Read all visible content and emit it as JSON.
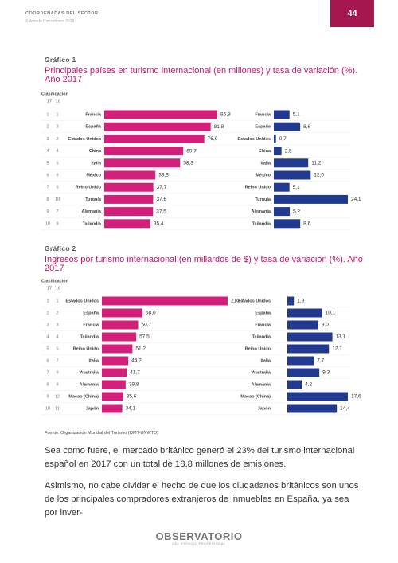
{
  "header": {
    "section": "COORDENADAS DEL SECTOR",
    "copyright": "© Amadó Consultores 2019",
    "page": "44"
  },
  "chart_data": [
    {
      "type": "bar",
      "label": "Gráfico 1",
      "title": "Principales países en turismo internacional (en millones) y tasa de variación (%). Año 2017",
      "rank_title": "Clasificación",
      "rank_headers": [
        "'17",
        "'16"
      ],
      "ranks": [
        [
          1,
          1
        ],
        [
          2,
          3
        ],
        [
          3,
          2
        ],
        [
          4,
          4
        ],
        [
          5,
          5
        ],
        [
          6,
          8
        ],
        [
          7,
          6
        ],
        [
          8,
          10
        ],
        [
          9,
          7
        ],
        [
          10,
          9
        ]
      ],
      "categories": [
        "Francia",
        "España",
        "Estados Unidos",
        "China",
        "Italia",
        "México",
        "Reino Unido",
        "Turquía",
        "Alemania",
        "Tailandia"
      ],
      "series": [
        {
          "color": "#d21f7a",
          "values": [
            86.9,
            81.8,
            76.9,
            60.7,
            58.3,
            39.3,
            37.7,
            37.6,
            37.5,
            35.4
          ],
          "value_labels": [
            "86,9",
            "81,8",
            "76,9",
            "60,7",
            "58,3",
            "39,3",
            "37,7",
            "37,6",
            "37,5",
            "35,4"
          ]
        },
        {
          "color": "#213a8f",
          "values": [
            5.1,
            8.6,
            0.7,
            2.5,
            11.2,
            12.0,
            5.1,
            24.1,
            5.2,
            8.6
          ],
          "value_labels": [
            "5,1",
            "8,6",
            "0,7",
            "2,5",
            "11,2",
            "12,0",
            "5,1",
            "24,1",
            "5,2",
            "8,6"
          ]
        }
      ]
    },
    {
      "type": "bar",
      "label": "Gráfico 2",
      "title": "Ingresos por turismo internacional (en millardos de $) y tasa de variación (%). Año 2017",
      "rank_title": "Clasificación",
      "rank_headers": [
        "'17",
        "'16"
      ],
      "ranks": [
        [
          1,
          1
        ],
        [
          2,
          2
        ],
        [
          3,
          3
        ],
        [
          4,
          4
        ],
        [
          5,
          5
        ],
        [
          6,
          7
        ],
        [
          7,
          9
        ],
        [
          8,
          8
        ],
        [
          9,
          12
        ],
        [
          10,
          11
        ]
      ],
      "categories": [
        "Estados Unidos",
        "España",
        "Francia",
        "Tailandia",
        "Reino Unido",
        "Italia",
        "Australia",
        "Alemania",
        "Macao (China)",
        "Japón"
      ],
      "series": [
        {
          "color": "#d21f7a",
          "values": [
            210.7,
            68.0,
            60.7,
            57.5,
            51.2,
            44.2,
            41.7,
            39.8,
            35.6,
            34.1
          ],
          "value_labels": [
            "210,7",
            "68,0",
            "60,7",
            "57,5",
            "51,2",
            "44,2",
            "41,7",
            "39,8",
            "35,6",
            "34,1"
          ]
        },
        {
          "color": "#213a8f",
          "values": [
            1.9,
            10.1,
            9.0,
            13.1,
            12.1,
            7.7,
            9.3,
            4.2,
            17.6,
            14.4
          ],
          "value_labels": [
            "1,9",
            "10,1",
            "9,0",
            "13,1",
            "12,1",
            "7,7",
            "9,3",
            "4,2",
            "17,6",
            "14,4"
          ]
        }
      ]
    }
  ],
  "source": "Fuente: Organización Mundial del Turismo (OMT-UNWTO)",
  "paragraphs": [
    "Sea como fuere, el mercado británico generó el 23% del turismo internacional español en 2017 con un total de 18,8 millones de emisiones.",
    "Asimismo, no cabe olvidar el hecho de que los ciudadanos británicos son unos de los principales compradores extranjeros de inmuebles en España, ya sea por inver-"
  ],
  "footer": {
    "logo": "OBSERVATORIO",
    "tagline": "DEL ESPACIO PROFESIONAL"
  }
}
